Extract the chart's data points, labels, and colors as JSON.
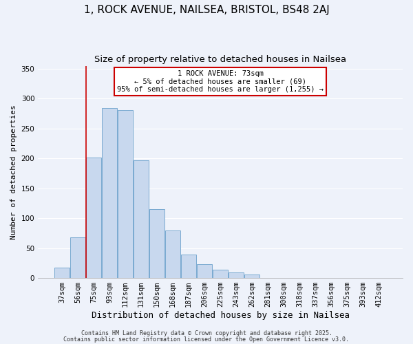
{
  "title1": "1, ROCK AVENUE, NAILSEA, BRISTOL, BS48 2AJ",
  "title2": "Size of property relative to detached houses in Nailsea",
  "xlabel": "Distribution of detached houses by size in Nailsea",
  "ylabel": "Number of detached properties",
  "bar_labels": [
    "37sqm",
    "56sqm",
    "75sqm",
    "93sqm",
    "112sqm",
    "131sqm",
    "150sqm",
    "168sqm",
    "187sqm",
    "206sqm",
    "225sqm",
    "243sqm",
    "262sqm",
    "281sqm",
    "300sqm",
    "318sqm",
    "337sqm",
    "356sqm",
    "375sqm",
    "393sqm",
    "412sqm"
  ],
  "bar_values": [
    17,
    68,
    201,
    284,
    281,
    197,
    115,
    80,
    39,
    23,
    14,
    9,
    6,
    0,
    0,
    0,
    0,
    0,
    0,
    0,
    0
  ],
  "bar_color": "#c8d8ee",
  "bar_edge_color": "#7aaad0",
  "annotation_text_line1": "1 ROCK AVENUE: 73sqm",
  "annotation_text_line2": "← 5% of detached houses are smaller (69)",
  "annotation_text_line3": "95% of semi-detached houses are larger (1,255) →",
  "annotation_box_color": "#ffffff",
  "annotation_box_edge_color": "#cc0000",
  "vline_color": "#cc0000",
  "vline_x": 1.5,
  "ylim": [
    0,
    355
  ],
  "yticks": [
    0,
    50,
    100,
    150,
    200,
    250,
    300,
    350
  ],
  "footnote1": "Contains HM Land Registry data © Crown copyright and database right 2025.",
  "footnote2": "Contains public sector information licensed under the Open Government Licence v3.0.",
  "background_color": "#eef2fa",
  "grid_color": "#ffffff",
  "title_fontsize": 11,
  "subtitle_fontsize": 9.5,
  "xlabel_fontsize": 9,
  "ylabel_fontsize": 8,
  "tick_fontsize": 7.5,
  "footnote_fontsize": 6,
  "annotation_fontsize": 7.5
}
